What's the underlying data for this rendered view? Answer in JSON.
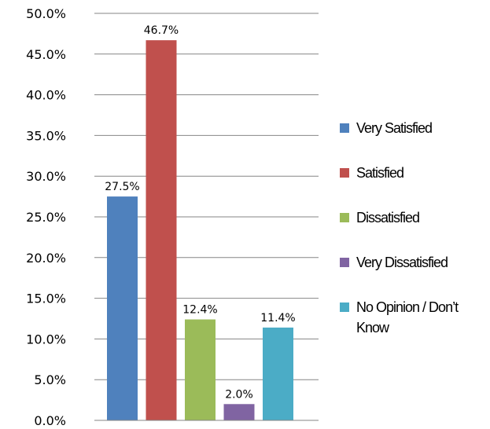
{
  "chart_data": {
    "type": "bar",
    "title": "",
    "xlabel": "",
    "ylabel": "",
    "ylim": [
      0,
      50
    ],
    "y_ticks": [
      "0.0%",
      "5.0%",
      "10.0%",
      "15.0%",
      "20.0%",
      "25.0%",
      "30.0%",
      "35.0%",
      "40.0%",
      "45.0%",
      "50.0%"
    ],
    "grid": true,
    "legend_position": "right",
    "categories": [
      "Very Satisfied",
      "Satisfied",
      "Dissatisfied",
      "Very Dissatisfied",
      "No Opinion / Don’t Know"
    ],
    "values": [
      27.5,
      46.7,
      12.4,
      2.0,
      11.4
    ],
    "data_labels": [
      "27.5%",
      "46.7%",
      "12.4%",
      "2.0%",
      "11.4%"
    ],
    "colors": [
      "#4f81bd",
      "#c0504d",
      "#9bbb59",
      "#8064a2",
      "#4bacc6"
    ],
    "legend": [
      {
        "lines": [
          "Very Satisfied"
        ]
      },
      {
        "lines": [
          "Satisfied"
        ]
      },
      {
        "lines": [
          "Dissatisfied"
        ]
      },
      {
        "lines": [
          "Very Dissatisfied"
        ]
      },
      {
        "lines": [
          "No Opinion / Don’t",
          "Know"
        ]
      }
    ]
  }
}
